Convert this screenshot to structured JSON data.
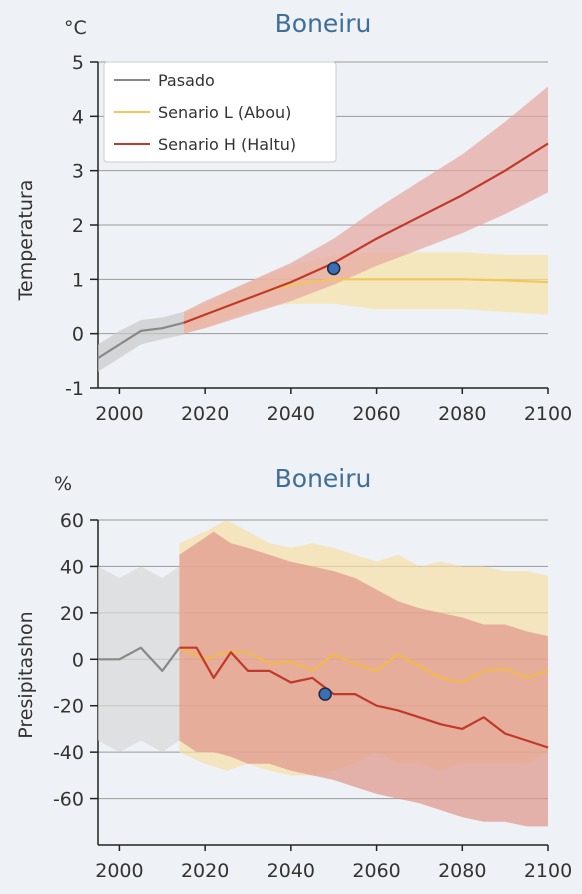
{
  "chart_data": [
    {
      "type": "line",
      "title": "Boneiru",
      "unit_label": "°C",
      "ylabel": "Temperatura",
      "xlabel": "",
      "xlim": [
        1995,
        2100
      ],
      "ylim": [
        -1,
        5
      ],
      "x_ticks": [
        2000,
        2020,
        2040,
        2060,
        2080,
        2100
      ],
      "y_ticks": [
        -1,
        0,
        1,
        2,
        3,
        4,
        5
      ],
      "grid": true,
      "legend_position": "top-left",
      "legend": [
        "Pasado",
        "Senario L (Abou)",
        "Senario H (Haltu)"
      ],
      "marker_point": {
        "x": 2050,
        "y": 1.2,
        "color": "#3a6fb5"
      },
      "series": [
        {
          "name": "Pasado",
          "color": "#888888",
          "band_color": "#c9c9c9",
          "x": [
            1995,
            2000,
            2005,
            2010,
            2015
          ],
          "values": [
            -0.45,
            -0.2,
            0.05,
            0.1,
            0.2
          ],
          "lower": [
            -0.7,
            -0.45,
            -0.2,
            -0.1,
            -0.02
          ],
          "upper": [
            -0.2,
            0.05,
            0.25,
            0.3,
            0.4
          ]
        },
        {
          "name": "Senario L (Abou)",
          "color": "#f2c65a",
          "band_color": "#f6e3a6",
          "x": [
            2015,
            2020,
            2025,
            2030,
            2035,
            2040,
            2045,
            2050,
            2055,
            2060,
            2070,
            2080,
            2090,
            2100
          ],
          "values": [
            0.2,
            0.35,
            0.5,
            0.65,
            0.8,
            0.9,
            0.95,
            1.0,
            1.0,
            1.0,
            1.0,
            1.0,
            0.98,
            0.95
          ],
          "lower": [
            0.0,
            0.12,
            0.25,
            0.4,
            0.5,
            0.55,
            0.55,
            0.55,
            0.5,
            0.45,
            0.45,
            0.45,
            0.4,
            0.35
          ],
          "upper": [
            0.4,
            0.55,
            0.75,
            0.95,
            1.1,
            1.25,
            1.35,
            1.45,
            1.5,
            1.5,
            1.5,
            1.5,
            1.45,
            1.45
          ]
        },
        {
          "name": "Senario H (Haltu)",
          "color": "#c0392b",
          "band_color": "#e6a5a0",
          "x": [
            2015,
            2020,
            2030,
            2040,
            2050,
            2060,
            2070,
            2080,
            2090,
            2100
          ],
          "values": [
            0.2,
            0.35,
            0.65,
            0.95,
            1.3,
            1.75,
            2.15,
            2.55,
            3.0,
            3.5
          ],
          "lower": [
            0.0,
            0.1,
            0.35,
            0.6,
            0.9,
            1.25,
            1.55,
            1.85,
            2.2,
            2.6
          ],
          "upper": [
            0.4,
            0.6,
            0.95,
            1.3,
            1.75,
            2.3,
            2.8,
            3.3,
            3.9,
            4.55
          ]
        }
      ]
    },
    {
      "type": "line",
      "title": "Boneiru",
      "unit_label": "%",
      "ylabel": "Presipitashon",
      "xlabel": "",
      "xlim": [
        1995,
        2100
      ],
      "ylim": [
        -80,
        60
      ],
      "x_ticks": [
        2000,
        2020,
        2040,
        2060,
        2080,
        2100
      ],
      "y_ticks": [
        -60,
        -40,
        -20,
        0,
        20,
        40,
        60
      ],
      "grid": true,
      "marker_point": {
        "x": 2048,
        "y": -15,
        "color": "#3a6fb5"
      },
      "series": [
        {
          "name": "Pasado",
          "color": "#888888",
          "band_color": "#d9d9d9",
          "x": [
            1995,
            2000,
            2005,
            2010,
            2014
          ],
          "values": [
            0,
            0,
            5,
            -5,
            5
          ],
          "lower": [
            -35,
            -40,
            -35,
            -40,
            -35
          ],
          "upper": [
            40,
            35,
            40,
            35,
            40
          ]
        },
        {
          "name": "Senario L (Abou)",
          "color": "#f2b84b",
          "band_color": "#f6dfa8",
          "x": [
            2014,
            2020,
            2025,
            2030,
            2035,
            2040,
            2045,
            2050,
            2055,
            2060,
            2065,
            2070,
            2075,
            2080,
            2085,
            2090,
            2095,
            2100
          ],
          "values": [
            5,
            0,
            3,
            3,
            -2,
            -1,
            -5,
            2,
            -2,
            -5,
            2,
            -3,
            -8,
            -10,
            -5,
            -4,
            -8,
            -5
          ],
          "lower": [
            -40,
            -45,
            -48,
            -45,
            -48,
            -50,
            -50,
            -48,
            -45,
            -40,
            -45,
            -45,
            -48,
            -45,
            -45,
            -45,
            -45,
            -40
          ],
          "upper": [
            50,
            55,
            60,
            55,
            50,
            48,
            50,
            48,
            45,
            42,
            45,
            40,
            42,
            40,
            40,
            38,
            38,
            36
          ]
        },
        {
          "name": "Senario H (Haltu)",
          "color": "#c0392b",
          "band_color": "#e0958a",
          "x": [
            2014,
            2018,
            2022,
            2026,
            2030,
            2035,
            2040,
            2045,
            2050,
            2055,
            2060,
            2065,
            2070,
            2075,
            2080,
            2085,
            2090,
            2095,
            2100
          ],
          "values": [
            5,
            5,
            -8,
            3,
            -5,
            -5,
            -10,
            -8,
            -15,
            -15,
            -20,
            -22,
            -25,
            -28,
            -30,
            -25,
            -32,
            -35,
            -38
          ],
          "lower": [
            -35,
            -40,
            -40,
            -42,
            -45,
            -45,
            -48,
            -50,
            -52,
            -55,
            -58,
            -60,
            -62,
            -65,
            -68,
            -70,
            -70,
            -72,
            -72
          ],
          "upper": [
            45,
            50,
            55,
            50,
            48,
            45,
            42,
            40,
            38,
            35,
            30,
            25,
            22,
            20,
            18,
            15,
            15,
            12,
            10
          ]
        }
      ]
    }
  ]
}
